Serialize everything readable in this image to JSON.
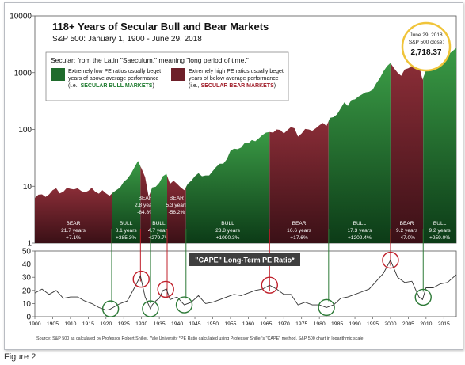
{
  "chart_data": [
    {
      "type": "area",
      "title": "118+ Years of Secular Bull and Bear Markets",
      "subtitle": "S&P 500: January 1, 1900 - June 29, 2018",
      "scale": "log",
      "ylim": [
        1,
        10000
      ],
      "y_ticks": [
        "1",
        "10",
        "100",
        "1000",
        "10000"
      ],
      "xlim": [
        1900,
        2018.5
      ],
      "x_ticks": [
        "1900",
        "1905",
        "1910",
        "1915",
        "1920",
        "1925",
        "1930",
        "1935",
        "1940",
        "1945",
        "1950",
        "1955",
        "1960",
        "1965",
        "1970",
        "1975",
        "1980",
        "1985",
        "1990",
        "1995",
        "2000",
        "2005",
        "2010",
        "2015"
      ],
      "grid": false,
      "legend": {
        "heading": "Secular: from the Latin \"Saeculum,\" meaning \"long period of time.\"",
        "bull_line1": "Extremely low PE ratios usually beget",
        "bull_line2": "years of above average performance",
        "bull_prefix": "(i.e., ",
        "bull_tag": "SECULAR BULL MARKETS",
        "bull_suffix": ")",
        "bear_line1": "Extremely high PE ratios usually beget",
        "bear_line2": "years of below average performance",
        "bear_prefix": "(i.e., ",
        "bear_tag": "SECULAR BEAR MARKETS",
        "bear_suffix": ")"
      },
      "callout": {
        "line1": "June 29, 2018",
        "line2": "S&P 500 close:",
        "value": "2,718.37"
      },
      "x": [
        1900,
        1901,
        1902,
        1903,
        1904,
        1905,
        1906,
        1907,
        1908,
        1909,
        1910,
        1911,
        1912,
        1913,
        1914,
        1915,
        1916,
        1917,
        1918,
        1919,
        1920,
        1921,
        1922,
        1923,
        1924,
        1925,
        1926,
        1927,
        1928,
        1929,
        1930,
        1931,
        1932,
        1933,
        1934,
        1935,
        1936,
        1937,
        1938,
        1939,
        1940,
        1941,
        1942,
        1943,
        1944,
        1945,
        1946,
        1947,
        1948,
        1949,
        1950,
        1951,
        1952,
        1953,
        1954,
        1955,
        1956,
        1957,
        1958,
        1959,
        1960,
        1961,
        1962,
        1963,
        1964,
        1965,
        1966,
        1967,
        1968,
        1969,
        1970,
        1971,
        1972,
        1973,
        1974,
        1975,
        1976,
        1977,
        1978,
        1979,
        1980,
        1981,
        1982,
        1983,
        1984,
        1985,
        1986,
        1987,
        1988,
        1989,
        1990,
        1991,
        1992,
        1993,
        1994,
        1995,
        1996,
        1997,
        1998,
        1999,
        2000,
        2001,
        2002,
        2003,
        2004,
        2005,
        2006,
        2007,
        2008,
        2009,
        2010,
        2011,
        2012,
        2013,
        2014,
        2015,
        2016,
        2017,
        2018.5
      ],
      "values": [
        6.2,
        7.1,
        7.2,
        6.5,
        7.2,
        8.5,
        9.2,
        7.5,
        8.0,
        9.4,
        9.0,
        8.8,
        9.2,
        8.3,
        7.8,
        8.3,
        9.4,
        8.0,
        7.4,
        8.5,
        7.5,
        6.8,
        7.8,
        8.6,
        9.5,
        12.0,
        13.5,
        16.5,
        21.5,
        28.0,
        20.5,
        14.5,
        6.5,
        9.5,
        9.8,
        11.5,
        15.0,
        16.5,
        11.0,
        12.5,
        11.0,
        9.5,
        8.5,
        11.0,
        12.5,
        15.0,
        17.0,
        15.0,
        15.5,
        15.5,
        18.5,
        22.0,
        25.0,
        25.0,
        30.0,
        42.0,
        46.0,
        45.0,
        48.0,
        58.0,
        57.0,
        65.0,
        62.0,
        70.0,
        80.0,
        88.0,
        90.0,
        88.0,
        100.0,
        98.0,
        85.0,
        97.0,
        110.0,
        105.0,
        75.0,
        85.0,
        102.0,
        100.0,
        95.0,
        105.0,
        118.0,
        130.0,
        115.0,
        160.0,
        165.0,
        185.0,
        235.0,
        300.0,
        260.0,
        330.0,
        340.0,
        380.0,
        415.0,
        450.0,
        460.0,
        500.0,
        650.0,
        800.0,
        1050.0,
        1300.0,
        1480.0,
        1200.0,
        1000.0,
        880.0,
        1140.0,
        1190.0,
        1290.0,
        1440.0,
        1350.0,
        750.0,
        1100.0,
        1300.0,
        1300.0,
        1500.0,
        1850.0,
        2060.0,
        2020.0,
        2280.0,
        2718.37
      ],
      "periods": [
        {
          "kind": "bear",
          "start": 1900.0,
          "end": 1921.6,
          "label": "BEAR",
          "years": "21.7 years",
          "change": "+7.1%"
        },
        {
          "kind": "bull",
          "start": 1921.6,
          "end": 1929.7,
          "label": "BULL",
          "years": "8.1 years",
          "change": "+385.3%"
        },
        {
          "kind": "bear",
          "start": 1929.7,
          "end": 1932.5,
          "label": "BEAR",
          "years": "2.8 years",
          "change": "-84.8%"
        },
        {
          "kind": "bull",
          "start": 1932.5,
          "end": 1937.2,
          "label": "BULL",
          "years": "4.7 years",
          "change": "+279.7%"
        },
        {
          "kind": "bear",
          "start": 1937.2,
          "end": 1942.5,
          "label": "BEAR",
          "years": "5.3 years",
          "change": "-56.2%"
        },
        {
          "kind": "bull",
          "start": 1942.5,
          "end": 1966.0,
          "label": "BULL",
          "years": "23.8 years",
          "change": "+1090.3%"
        },
        {
          "kind": "bear",
          "start": 1966.0,
          "end": 1982.6,
          "label": "BEAR",
          "years": "16.6 years",
          "change": "+17.6%"
        },
        {
          "kind": "bull",
          "start": 1982.6,
          "end": 2000.0,
          "label": "BULL",
          "years": "17.3 years",
          "change": "+1202.4%"
        },
        {
          "kind": "bear",
          "start": 2000.0,
          "end": 2009.2,
          "label": "BEAR",
          "years": "9.2 years",
          "change": "-47.0%"
        },
        {
          "kind": "bull",
          "start": 2009.2,
          "end": 2018.5,
          "label": "BULL",
          "years": "9.2 years",
          "change": "+259.0%"
        }
      ]
    },
    {
      "type": "line",
      "title": "\"CAPE\" Long-Term PE Ratio*",
      "ylim": [
        0,
        50
      ],
      "y_ticks": [
        "0",
        "10",
        "20",
        "30",
        "40",
        "50"
      ],
      "xlim": [
        1900,
        2018.5
      ],
      "x": [
        1900,
        1902,
        1904,
        1906,
        1908,
        1910,
        1912,
        1914,
        1916,
        1918,
        1920,
        1921,
        1922,
        1924,
        1926,
        1928,
        1929.7,
        1931,
        1932.5,
        1933,
        1934,
        1935,
        1936,
        1937,
        1938,
        1940,
        1942,
        1944,
        1946,
        1948,
        1950,
        1952,
        1954,
        1956,
        1958,
        1960,
        1962,
        1964,
        1966,
        1968,
        1970,
        1972,
        1974,
        1976,
        1978,
        1980,
        1982,
        1984,
        1986,
        1988,
        1990,
        1992,
        1994,
        1996,
        1998,
        2000,
        2002,
        2004,
        2006,
        2008,
        2009,
        2010,
        2012,
        2014,
        2016,
        2018.5
      ],
      "values": [
        18,
        21,
        17,
        20,
        14,
        15,
        15,
        12,
        10,
        7,
        5,
        5.5,
        7,
        10,
        12,
        22,
        31,
        15,
        6,
        9,
        12,
        14,
        20,
        21,
        13,
        15,
        9,
        11,
        16,
        10,
        11,
        13,
        15,
        17,
        16,
        18,
        20,
        21,
        24,
        21,
        17,
        17,
        9,
        11,
        9,
        9,
        7,
        9,
        14,
        15,
        17,
        19,
        21,
        27,
        33,
        43,
        30,
        26,
        27,
        15,
        13,
        22,
        22,
        25,
        26,
        32
      ],
      "circles": [
        1921.3,
        1929.9,
        1932.5,
        1936.8,
        1942.0,
        1966.0,
        1982.0,
        2000.0,
        2009.2
      ]
    }
  ],
  "footer": {
    "source": "Source: S&P 500 as calculated by Professor Robert Shiller, Yale University  *PE Ratio calculated using Professor Shiller's \"CAPE\" method. S&P 500 chart in logarithmic scale."
  },
  "caption": "Figure 2",
  "colors": {
    "bull_top": "#2f8a3b",
    "bull_bottom": "#0b3a16",
    "bear_top": "#7a2730",
    "bear_bottom": "#3a1016",
    "highlight_circle": "#c0202b",
    "bottom_circle": "#2d7a37",
    "callout_ring": "#f0c43a",
    "cape_line": "#333333"
  }
}
